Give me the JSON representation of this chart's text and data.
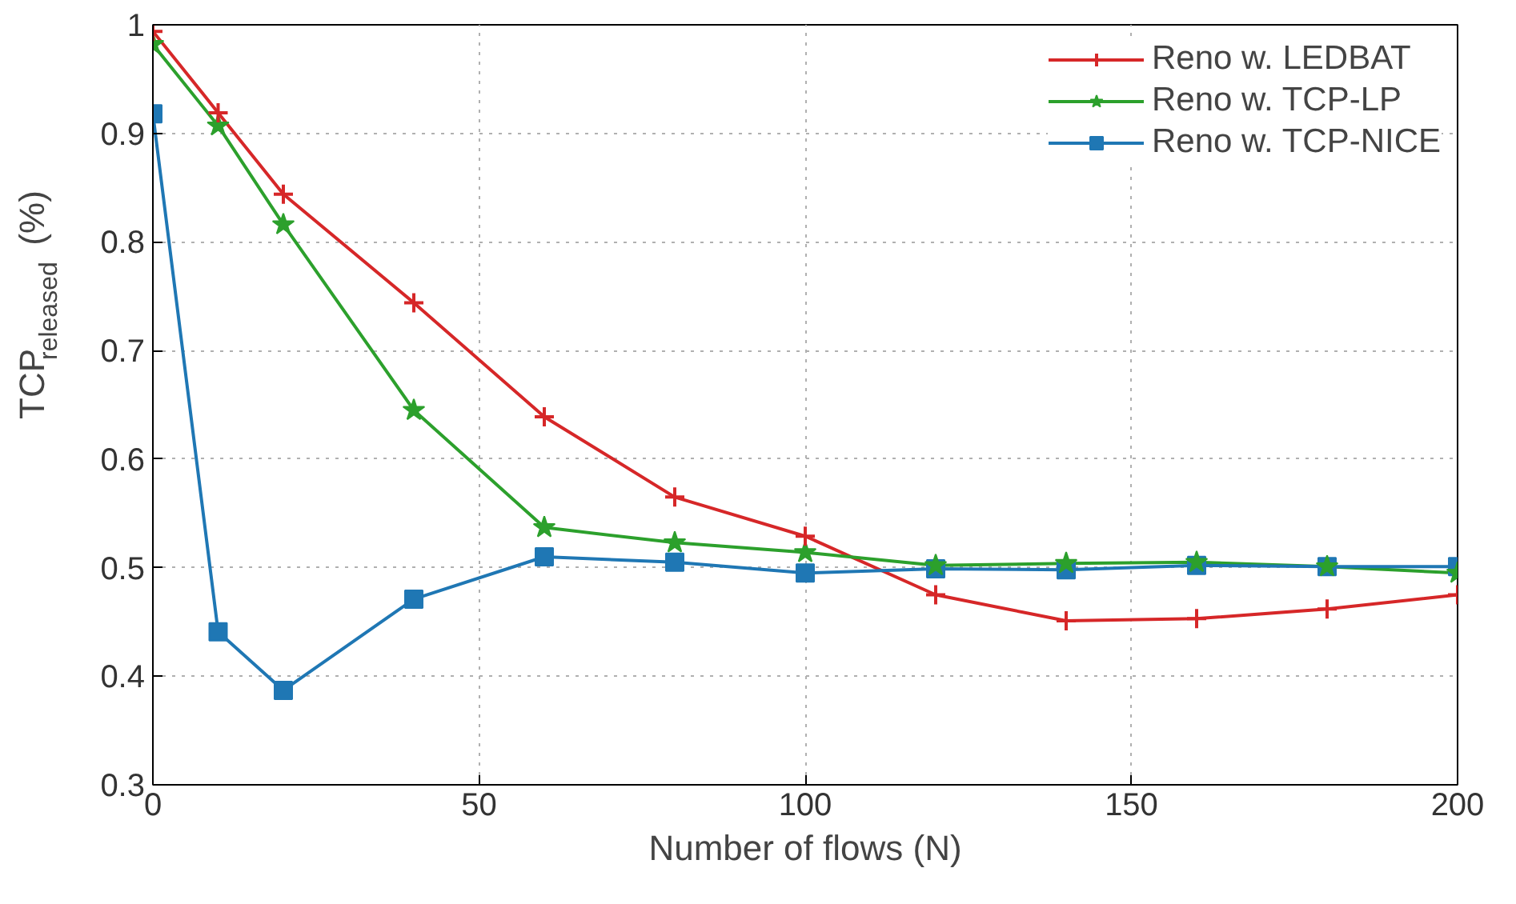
{
  "chart_data": {
    "type": "line",
    "xlabel": "Number of flows (N)",
    "ylabel": "TCP$_{released}$ (%)",
    "x": [
      0,
      10,
      20,
      40,
      60,
      80,
      100,
      120,
      140,
      160,
      180,
      200
    ],
    "xlim": [
      0,
      200
    ],
    "xticks": [
      0,
      50,
      100,
      150,
      200
    ],
    "ylim": [
      0.3,
      1
    ],
    "yticks": [
      0.3,
      0.4,
      0.5,
      0.6,
      0.7,
      0.8,
      0.9,
      1
    ],
    "grid": true,
    "legend": "top right",
    "line_style": "solid",
    "series": [
      {
        "name": "Reno w. LEDBAT",
        "color": "#d62728",
        "marker": "cross",
        "values": [
          0.994,
          0.919,
          0.844,
          0.744,
          0.639,
          0.565,
          0.529,
          0.475,
          0.451,
          0.453,
          0.462,
          0.475
        ]
      },
      {
        "name": "Reno w. TCP-LP",
        "color": "#2ca02c",
        "marker": "star",
        "values": [
          0.982,
          0.907,
          0.816,
          0.645,
          0.537,
          0.523,
          0.514,
          0.502,
          0.504,
          0.505,
          0.501,
          0.495
        ]
      },
      {
        "name": "Reno w. TCP-NICE",
        "color": "#1f77b4",
        "marker": "square",
        "values": [
          0.918,
          0.441,
          0.387,
          0.471,
          0.51,
          0.505,
          0.495,
          0.499,
          0.498,
          0.502,
          0.501,
          0.501
        ]
      }
    ]
  }
}
